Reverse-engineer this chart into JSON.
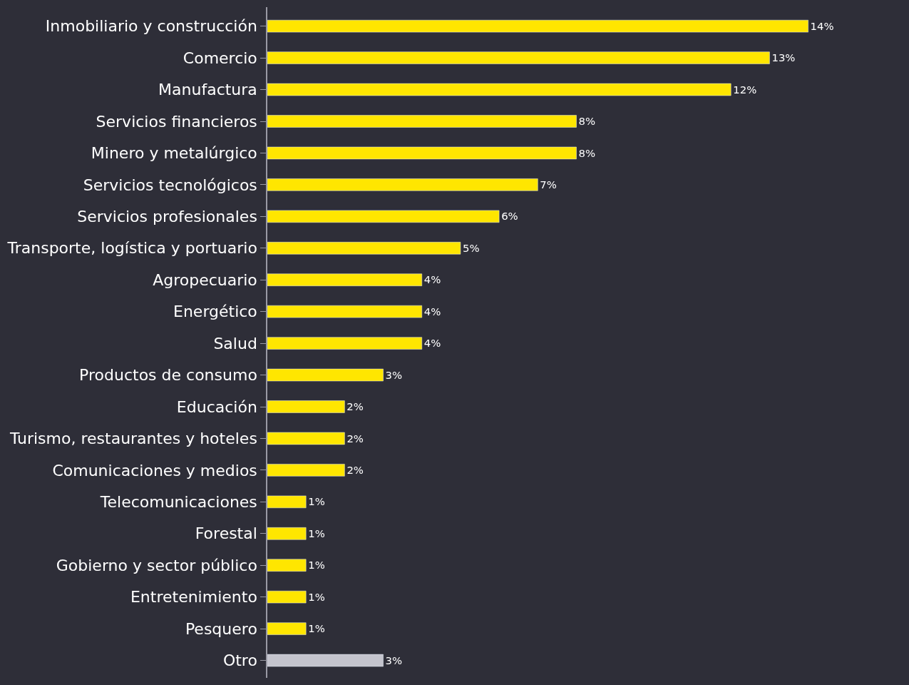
{
  "chart_data": {
    "type": "bar",
    "orientation": "horizontal",
    "categories": [
      "Inmobiliario y construcción",
      "Comercio",
      "Manufactura",
      "Servicios financieros",
      "Minero y metalúrgico",
      "Servicios tecnológicos",
      "Servicios profesionales",
      "Transporte, logística y portuario",
      "Agropecuario",
      "Energético",
      "Salud",
      "Productos de consumo",
      "Educación",
      "Turismo, restaurantes y hoteles",
      "Comunicaciones y medios",
      "Telecomunicaciones",
      "Forestal",
      "Gobierno y sector público",
      "Entretenimiento",
      "Pesquero",
      "Otro"
    ],
    "values": [
      14,
      13,
      12,
      8,
      8,
      7,
      6,
      5,
      4,
      4,
      4,
      3,
      2,
      2,
      2,
      1,
      1,
      1,
      1,
      1,
      3
    ],
    "value_labels": [
      "14%",
      "13%",
      "12%",
      "8%",
      "8%",
      "7%",
      "6%",
      "5%",
      "4%",
      "4%",
      "4%",
      "3%",
      "2%",
      "2%",
      "2%",
      "1%",
      "1%",
      "1%",
      "1%",
      "1%",
      "3%"
    ],
    "colors": [
      "#ffe600",
      "#ffe600",
      "#ffe600",
      "#ffe600",
      "#ffe600",
      "#ffe600",
      "#ffe600",
      "#ffe600",
      "#ffe600",
      "#ffe600",
      "#ffe600",
      "#ffe600",
      "#ffe600",
      "#ffe600",
      "#ffe600",
      "#ffe600",
      "#ffe600",
      "#ffe600",
      "#ffe600",
      "#ffe600",
      "#c4c4cd"
    ],
    "grid": false
  }
}
